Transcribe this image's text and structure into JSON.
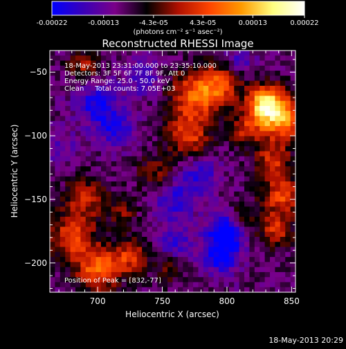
{
  "chart_data": {
    "type": "heatmap",
    "title": "Reconstructed RHESSI Image",
    "xlabel": "Heliocentric X (arcsec)",
    "ylabel": "Heliocentric Y (arcsec)",
    "xlim": [
      663,
      853
    ],
    "ylim": [
      -223,
      -33
    ],
    "x_ticks": [
      700,
      750,
      800,
      850
    ],
    "y_ticks": [
      -50,
      -100,
      -150,
      -200
    ],
    "grid": false,
    "colorbar": {
      "position": "top",
      "range": [
        -0.00022,
        0.00022
      ],
      "tick_values": [
        -0.00022,
        -0.00013,
        -4.3e-05,
        4.3e-05,
        0.00013,
        0.00022
      ],
      "tick_labels": [
        "-0.00022",
        "-0.00013",
        "-4.3e-05",
        "4.3e-05",
        "0.00013",
        "0.00022"
      ],
      "units_label": "(photons cm⁻² s⁻¹ asec⁻²)",
      "colormap": [
        "#0000ff",
        "#3a00b8",
        "#7a0088",
        "#000000",
        "#b01000",
        "#ff4500",
        "#ff9a00",
        "#ffff80",
        "#ffffff"
      ]
    },
    "annotations": [
      "18-May-2013 23:31:00.000 to 23:35:10.000",
      "Detectors: 3F 5F 6F 7F 8F 9F, Att 0",
      "Energy Range: 25.0 - 50.0 keV",
      "Clean     Total counts: 7.05E+03"
    ],
    "peak_label": "Position of Peak = [832,-77]",
    "sources": [
      {
        "x": 776,
        "y": -68,
        "v": 0.00013,
        "r": 14
      },
      {
        "x": 770,
        "y": -100,
        "v": 0.00011,
        "r": 12
      },
      {
        "x": 795,
        "y": -60,
        "v": 0.0001,
        "r": 11
      },
      {
        "x": 830,
        "y": -75,
        "v": 0.00021,
        "r": 10
      },
      {
        "x": 843,
        "y": -88,
        "v": 0.00016,
        "r": 12
      },
      {
        "x": 815,
        "y": -95,
        "v": 9e-05,
        "r": 9
      },
      {
        "x": 835,
        "y": -120,
        "v": 0.0001,
        "r": 10
      },
      {
        "x": 843,
        "y": -148,
        "v": 0.00012,
        "r": 11
      },
      {
        "x": 838,
        "y": -175,
        "v": 0.0001,
        "r": 9
      },
      {
        "x": 812,
        "y": -165,
        "v": 8e-05,
        "r": 8
      },
      {
        "x": 745,
        "y": -130,
        "v": 7e-05,
        "r": 10
      },
      {
        "x": 690,
        "y": -150,
        "v": 9e-05,
        "r": 12
      },
      {
        "x": 680,
        "y": -180,
        "v": 0.00012,
        "r": 12
      },
      {
        "x": 700,
        "y": -205,
        "v": 0.00014,
        "r": 12
      },
      {
        "x": 725,
        "y": -195,
        "v": 0.0001,
        "r": 10
      },
      {
        "x": 690,
        "y": -45,
        "v": 8e-05,
        "r": 9
      },
      {
        "x": 755,
        "y": -205,
        "v": 6e-05,
        "r": 8
      },
      {
        "x": 720,
        "y": -160,
        "v": 6e-05,
        "r": 8
      },
      {
        "x": 700,
        "y": -75,
        "v": -0.00012,
        "r": 12
      },
      {
        "x": 715,
        "y": -95,
        "v": -0.0001,
        "r": 10
      },
      {
        "x": 760,
        "y": -150,
        "v": -0.0001,
        "r": 12
      },
      {
        "x": 800,
        "y": -175,
        "v": -0.00018,
        "r": 10
      },
      {
        "x": 795,
        "y": -195,
        "v": -0.00013,
        "r": 10
      },
      {
        "x": 780,
        "y": -130,
        "v": -9e-05,
        "r": 10
      },
      {
        "x": 735,
        "y": -55,
        "v": -8e-05,
        "r": 10
      },
      {
        "x": 670,
        "y": -110,
        "v": -6e-05,
        "r": 10
      },
      {
        "x": 810,
        "y": -40,
        "v": -7e-05,
        "r": 8
      },
      {
        "x": 760,
        "y": -185,
        "v": -8e-05,
        "r": 10
      }
    ]
  },
  "footer": {
    "timestamp": "18-May-2013 20:29"
  }
}
